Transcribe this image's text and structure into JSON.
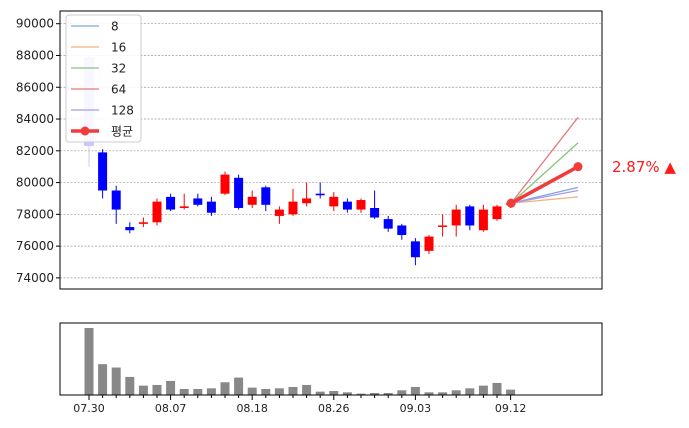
{
  "chart_data": [
    {
      "type": "candlestick",
      "yticks": [
        74000,
        76000,
        78000,
        80000,
        82000,
        84000,
        86000,
        88000,
        90000
      ],
      "ylim": [
        73300,
        90800
      ],
      "grid": "horizontal dashed",
      "legend_placement": "top-left",
      "candles": [
        {
          "o": 82300,
          "c": 87900,
          "h": 88000,
          "l": 81000
        },
        {
          "o": 81900,
          "c": 79500,
          "h": 82100,
          "l": 79000
        },
        {
          "o": 79500,
          "c": 78300,
          "h": 79800,
          "l": 77400
        },
        {
          "o": 77200,
          "c": 77000,
          "h": 77500,
          "l": 76800
        },
        {
          "o": 77400,
          "c": 77500,
          "h": 77800,
          "l": 77200
        },
        {
          "o": 77500,
          "c": 78800,
          "h": 79000,
          "l": 77300
        },
        {
          "o": 79100,
          "c": 78300,
          "h": 79300,
          "l": 78200
        },
        {
          "o": 78400,
          "c": 78500,
          "h": 79300,
          "l": 78300
        },
        {
          "o": 79000,
          "c": 78600,
          "h": 79300,
          "l": 78500
        },
        {
          "o": 78800,
          "c": 78100,
          "h": 79100,
          "l": 77900
        },
        {
          "o": 79300,
          "c": 80500,
          "h": 80700,
          "l": 79200
        },
        {
          "o": 80300,
          "c": 78400,
          "h": 80500,
          "l": 78300
        },
        {
          "o": 78600,
          "c": 79100,
          "h": 79500,
          "l": 78400
        },
        {
          "o": 79700,
          "c": 78600,
          "h": 79800,
          "l": 78200
        },
        {
          "o": 77900,
          "c": 78300,
          "h": 78500,
          "l": 77400
        },
        {
          "o": 78000,
          "c": 78800,
          "h": 79600,
          "l": 77900
        },
        {
          "o": 78700,
          "c": 79000,
          "h": 80000,
          "l": 78500
        },
        {
          "o": 79300,
          "c": 79200,
          "h": 80000,
          "l": 79000
        },
        {
          "o": 78500,
          "c": 79100,
          "h": 79400,
          "l": 78200
        },
        {
          "o": 78800,
          "c": 78300,
          "h": 79000,
          "l": 78100
        },
        {
          "o": 78300,
          "c": 78900,
          "h": 79000,
          "l": 78100
        },
        {
          "o": 78400,
          "c": 77800,
          "h": 79500,
          "l": 77700
        },
        {
          "o": 77700,
          "c": 77100,
          "h": 77900,
          "l": 76900
        },
        {
          "o": 77300,
          "c": 76700,
          "h": 77400,
          "l": 76400
        },
        {
          "o": 76300,
          "c": 75300,
          "h": 76500,
          "l": 74800
        },
        {
          "o": 75700,
          "c": 76600,
          "h": 76700,
          "l": 75500
        },
        {
          "o": 77300,
          "c": 77300,
          "h": 78000,
          "l": 76600
        },
        {
          "o": 77300,
          "c": 78300,
          "h": 78600,
          "l": 76600
        },
        {
          "o": 78500,
          "c": 77300,
          "h": 78600,
          "l": 77000
        },
        {
          "o": 77000,
          "c": 78300,
          "h": 78600,
          "l": 76900
        },
        {
          "o": 77700,
          "c": 78500,
          "h": 78600,
          "l": 77600
        },
        {
          "o": 78600,
          "c": 78700,
          "h": 79000,
          "l": 78400
        }
      ],
      "projections": [
        {
          "name": "8",
          "color": "#7ea6e0",
          "end": 79700
        },
        {
          "name": "16",
          "color": "#f3b07f",
          "end": 79100
        },
        {
          "name": "32",
          "color": "#86c47c",
          "end": 82500
        },
        {
          "name": "64",
          "color": "#e07a7a",
          "end": 84100
        },
        {
          "name": "128",
          "color": "#a99be6",
          "end": 79500
        }
      ],
      "average": {
        "name": "평균",
        "color": "#f23b3b",
        "start": 78700,
        "end": 81000
      },
      "volume_marker_overlay": {
        "y_low": 82300,
        "y_high": 87900
      }
    },
    {
      "type": "bar",
      "series_name": "volume",
      "values": [
        100,
        46,
        41,
        27,
        14,
        15,
        21,
        9,
        9,
        10,
        19,
        26,
        11,
        9,
        10,
        12,
        15,
        5,
        6,
        4,
        2,
        3,
        3,
        7,
        12,
        4,
        4,
        7,
        10,
        14,
        18,
        8
      ],
      "xtick_labels": [
        {
          "index": 0,
          "label": "07.30"
        },
        {
          "index": 6,
          "label": "08.07"
        },
        {
          "index": 12,
          "label": "08.18"
        },
        {
          "index": 18,
          "label": "08.26"
        },
        {
          "index": 24,
          "label": "09.03"
        },
        {
          "index": 31,
          "label": "09.12"
        }
      ]
    }
  ],
  "annotation": {
    "text": "2.87% ▲",
    "color": "#ff1a1a"
  },
  "colors": {
    "up": "#ff0000",
    "down": "#0000ff",
    "volume": "#888888",
    "grid": "#999999"
  }
}
